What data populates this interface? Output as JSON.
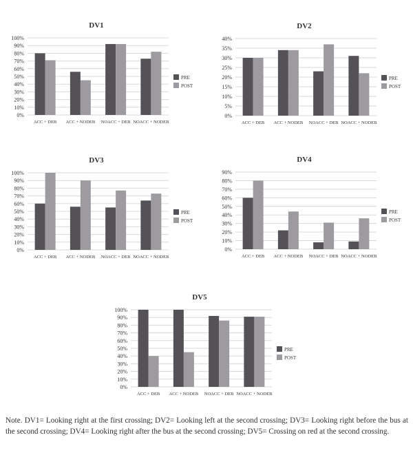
{
  "colors": {
    "pre": "#545257",
    "post": "#9d9ba0",
    "grid": "#d9d9d9"
  },
  "note": "Note. DV1= Looking right at the first crossing; DV2= Looking left at the second crossing; DV3= Looking right before the bus at the second crossing; DV4= Looking right after the bus at the second crossing; DV5= Crossing on red at the second crossing.",
  "chart_data": [
    {
      "type": "bar",
      "title": "DV1",
      "categories": [
        "ACC + DEB",
        "ACC + NODEB",
        "NOACC + DEB",
        "NOACC + NODEB"
      ],
      "series": [
        {
          "name": "PRE",
          "values": [
            80,
            56,
            92,
            73
          ]
        },
        {
          "name": "POST",
          "values": [
            71,
            45,
            92,
            82
          ]
        }
      ],
      "ylim": [
        0,
        100
      ],
      "yticks": [
        "0%",
        "10%",
        "20%",
        "30%",
        "40%",
        "50%",
        "60%",
        "70%",
        "80%",
        "90%",
        "100%"
      ],
      "grid": true,
      "legend": "right"
    },
    {
      "type": "bar",
      "title": "DV2",
      "categories": [
        "ACC + DEB",
        "ACC + NODEB",
        "NOACC + DEB",
        "NOACC + NODEB"
      ],
      "series": [
        {
          "name": "PRE",
          "values": [
            30,
            34,
            23,
            31
          ]
        },
        {
          "name": "POST",
          "values": [
            30,
            34,
            37,
            22
          ]
        }
      ],
      "ylim": [
        0,
        40
      ],
      "yticks": [
        "0%",
        "5%",
        "10%",
        "15%",
        "20%",
        "25%",
        "30%",
        "35%",
        "40%"
      ],
      "grid": true,
      "legend": "right"
    },
    {
      "type": "bar",
      "title": "DV3",
      "categories": [
        "ACC + DEB",
        "ACC + NODEB",
        "NOACC + DEB",
        "NOACC + NODEB"
      ],
      "series": [
        {
          "name": "PRE",
          "values": [
            60,
            56,
            55,
            64
          ]
        },
        {
          "name": "POST",
          "values": [
            100,
            90,
            77,
            73
          ]
        }
      ],
      "ylim": [
        0,
        100
      ],
      "yticks": [
        "0%",
        "10%",
        "20%",
        "30%",
        "40%",
        "50%",
        "60%",
        "70%",
        "80%",
        "90%",
        "100%"
      ],
      "grid": true,
      "legend": "right"
    },
    {
      "type": "bar",
      "title": "DV4",
      "categories": [
        "ACC + DEB",
        "ACC + NODEB",
        "NOACC + DEB",
        "NOACC + NODEB"
      ],
      "series": [
        {
          "name": "PRE",
          "values": [
            60,
            22,
            8,
            9
          ]
        },
        {
          "name": "POST",
          "values": [
            80,
            44,
            31,
            36
          ]
        }
      ],
      "ylim": [
        0,
        90
      ],
      "yticks": [
        "0%",
        "10%",
        "20%",
        "30%",
        "40%",
        "50%",
        "60%",
        "70%",
        "80%",
        "90%"
      ],
      "grid": true,
      "legend": "right"
    },
    {
      "type": "bar",
      "title": "DV5",
      "categories": [
        "ACC + DEB",
        "ACC + NODEB",
        "NOACC + DEB",
        "NOACC + NODEB"
      ],
      "series": [
        {
          "name": "PRE",
          "values": [
            100,
            100,
            92,
            91
          ]
        },
        {
          "name": "POST",
          "values": [
            40,
            45,
            86,
            91
          ]
        }
      ],
      "ylim": [
        0,
        100
      ],
      "yticks": [
        "0%",
        "10%",
        "20%",
        "30%",
        "40%",
        "50%",
        "60%",
        "70%",
        "80%",
        "90%",
        "100%"
      ],
      "grid": true,
      "legend": "right"
    }
  ]
}
